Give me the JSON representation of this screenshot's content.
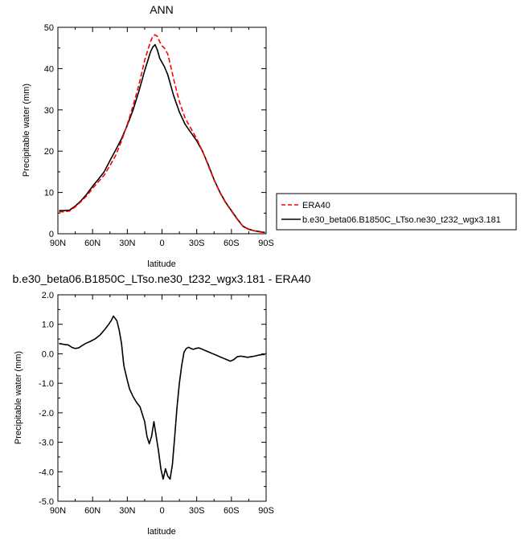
{
  "chart_data": [
    {
      "type": "line",
      "title": "ANN",
      "xlabel": "latitude",
      "ylabel": "Precipitable water (mm)",
      "xlim": [
        90,
        -90
      ],
      "ylim": [
        0,
        50
      ],
      "x_ticks": [
        90,
        60,
        30,
        0,
        -30,
        -60,
        -90
      ],
      "x_tick_labels": [
        "90N",
        "60N",
        "30N",
        "0",
        "30S",
        "60S",
        "90S"
      ],
      "y_ticks": [
        0,
        10,
        20,
        30,
        40,
        50
      ],
      "y_tick_labels": [
        "0",
        "10",
        "20",
        "30",
        "40",
        "50"
      ],
      "legend_position": "right",
      "series": [
        {
          "name": "ERA40",
          "color": "#ff0000",
          "dash": "dashed",
          "x": [
            89,
            85,
            80,
            75,
            70,
            65,
            60,
            55,
            50,
            45,
            40,
            35,
            30,
            25,
            20,
            15,
            10,
            8,
            6,
            4,
            2,
            0,
            -2,
            -5,
            -8,
            -10,
            -15,
            -20,
            -25,
            -30,
            -35,
            -40,
            -45,
            -50,
            -55,
            -60,
            -65,
            -70,
            -75,
            -80,
            -85,
            -89
          ],
          "y": [
            5.3,
            5.3,
            5.5,
            6.5,
            7.8,
            9.2,
            11.0,
            12.6,
            14.2,
            16.5,
            19.0,
            22.5,
            26.5,
            31.0,
            36.0,
            42.0,
            46.5,
            47.8,
            48.2,
            47.8,
            46.5,
            45.5,
            45.0,
            43.5,
            40.0,
            37.5,
            32.0,
            28.0,
            25.5,
            23.0,
            20.0,
            16.5,
            13.0,
            10.0,
            7.5,
            5.5,
            3.5,
            1.8,
            1.0,
            0.7,
            0.4,
            0.3
          ]
        },
        {
          "name": "b.e30_beta06.B1850C_LTso.ne30_t232_wgx3.181",
          "color": "#000000",
          "dash": "solid",
          "x": [
            89,
            85,
            80,
            75,
            70,
            65,
            60,
            55,
            50,
            45,
            40,
            35,
            30,
            25,
            20,
            15,
            10,
            8,
            6,
            4,
            2,
            0,
            -2,
            -5,
            -8,
            -10,
            -15,
            -20,
            -25,
            -30,
            -35,
            -40,
            -45,
            -50,
            -55,
            -60,
            -65,
            -70,
            -75,
            -80,
            -85,
            -89
          ],
          "y": [
            5.6,
            5.6,
            5.7,
            6.7,
            8.0,
            9.6,
            11.5,
            13.2,
            15.0,
            17.7,
            20.3,
            23.0,
            26.3,
            30.0,
            34.5,
            39.5,
            44.0,
            45.2,
            45.8,
            44.5,
            42.5,
            41.5,
            40.5,
            38.5,
            35.5,
            33.5,
            29.5,
            26.5,
            24.5,
            22.5,
            20.0,
            16.7,
            13.1,
            10.1,
            7.6,
            5.6,
            3.6,
            1.8,
            1.1,
            0.7,
            0.5,
            0.3
          ]
        }
      ]
    },
    {
      "type": "line",
      "title": "b.e30_beta06.B1850C_LTso.ne30_t232_wgx3.181 - ERA40",
      "xlabel": "latitude",
      "ylabel": "Precipitable water (mm)",
      "xlim": [
        90,
        -90
      ],
      "ylim": [
        -5,
        2
      ],
      "x_ticks": [
        90,
        60,
        30,
        0,
        -30,
        -60,
        -90
      ],
      "x_tick_labels": [
        "90N",
        "60N",
        "30N",
        "0",
        "30S",
        "60S",
        "90S"
      ],
      "y_ticks": [
        2,
        1,
        0,
        -1,
        -2,
        -3,
        -4,
        -5
      ],
      "y_tick_labels": [
        "2.0",
        "1.0",
        "0.0",
        "-1.0",
        "-2.0",
        "-3.0",
        "-4.0",
        "-5.0"
      ],
      "series": [
        {
          "color": "#000000",
          "dash": "solid",
          "x": [
            89,
            85,
            81,
            78,
            75,
            72,
            69,
            66,
            62,
            58,
            54,
            50,
            47,
            44,
            42,
            39,
            37,
            35,
            33,
            30,
            28,
            25,
            22,
            19,
            17,
            15,
            13,
            11,
            9,
            7,
            5,
            3,
            1,
            -1,
            -3,
            -5,
            -7,
            -9,
            -11,
            -13,
            -15,
            -17,
            -19,
            -21,
            -23,
            -25,
            -27,
            -29,
            -32,
            -35,
            -38,
            -41,
            -44,
            -47,
            -50,
            -53,
            -56,
            -59,
            -62,
            -65,
            -68,
            -71,
            -74,
            -77,
            -80,
            -83,
            -86,
            -89
          ],
          "y": [
            0.35,
            0.32,
            0.3,
            0.22,
            0.18,
            0.2,
            0.28,
            0.35,
            0.42,
            0.5,
            0.62,
            0.8,
            0.95,
            1.12,
            1.28,
            1.12,
            0.8,
            0.35,
            -0.4,
            -0.9,
            -1.2,
            -1.45,
            -1.65,
            -1.8,
            -2.05,
            -2.3,
            -2.8,
            -3.05,
            -2.8,
            -2.3,
            -2.8,
            -3.3,
            -3.9,
            -4.25,
            -3.9,
            -4.15,
            -4.25,
            -3.75,
            -2.8,
            -1.8,
            -1.0,
            -0.4,
            0.05,
            0.18,
            0.22,
            0.18,
            0.15,
            0.18,
            0.2,
            0.15,
            0.1,
            0.05,
            0.0,
            -0.05,
            -0.1,
            -0.15,
            -0.2,
            -0.25,
            -0.2,
            -0.1,
            -0.08,
            -0.1,
            -0.12,
            -0.1,
            -0.08,
            -0.05,
            -0.03,
            -0.02
          ]
        }
      ]
    }
  ]
}
